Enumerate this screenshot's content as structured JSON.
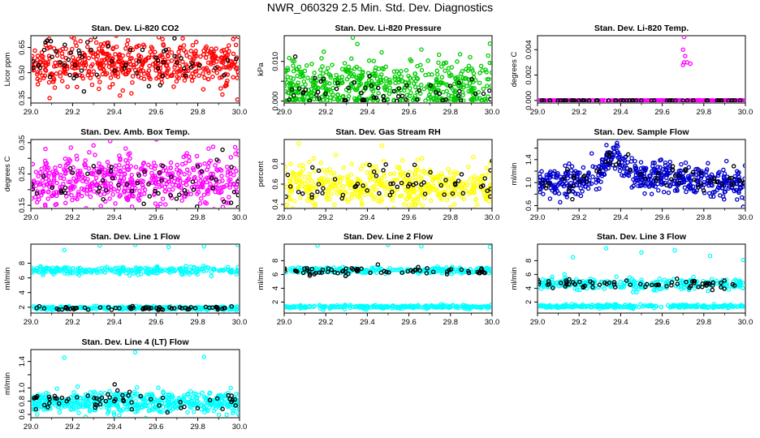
{
  "page": {
    "title": "NWR_060329  2.5 Min. Std. Dev. Diagnostics"
  },
  "chart_data": [
    {
      "type": "scatter",
      "title": "Stan. Dev. Li-820 CO2",
      "ylabel": "Licor ppm",
      "xlim": [
        29.0,
        30.0
      ],
      "ylim": [
        0.32,
        0.72
      ],
      "xticks": [
        "29.0",
        "29.2",
        "29.4",
        "29.6",
        "29.8",
        "30.0"
      ],
      "yticks": [
        0.35,
        0.5,
        0.65
      ],
      "ytick_labels": [
        "0.35",
        "0.50",
        "0.65"
      ],
      "series": [
        {
          "color": "#ff0000",
          "count": 520,
          "pattern": "band",
          "base": 0.555,
          "spread": 0.07
        },
        {
          "color": "#000000",
          "count": 60,
          "pattern": "band",
          "base": 0.57,
          "spread": 0.07
        }
      ],
      "notable_points": [
        {
          "x": 29.99,
          "y": 0.34,
          "color": "#ff0000"
        },
        {
          "x": 29.97,
          "y": 0.7,
          "color": "#ff0000"
        },
        {
          "x": 29.07,
          "y": 0.68,
          "color": "#000000"
        }
      ]
    },
    {
      "type": "scatter",
      "title": "Stan. Dev. Li-820 Pressure",
      "ylabel": "kPa",
      "xlim": [
        29.0,
        30.0
      ],
      "ylim": [
        -0.0005,
        0.0165
      ],
      "xticks": [
        "29.0",
        "29.2",
        "29.4",
        "29.6",
        "29.8",
        "30.0"
      ],
      "yticks": [
        0.0,
        0.005,
        0.01
      ],
      "ytick_labels": [
        "0.000",
        "",
        "0.010"
      ],
      "series": [
        {
          "color": "#00cc00",
          "count": 520,
          "pattern": "band",
          "base": 0.0035,
          "spread": 0.0035,
          "floor": 0.0
        },
        {
          "color": "#000000",
          "count": 60,
          "pattern": "band",
          "base": 0.0025,
          "spread": 0.003,
          "floor": 0.0
        }
      ],
      "notable_points": [
        {
          "x": 29.33,
          "y": 0.016,
          "color": "#00cc00"
        },
        {
          "x": 29.66,
          "y": 0.013,
          "color": "#00cc00"
        },
        {
          "x": 29.99,
          "y": 0.0145,
          "color": "#00cc00"
        }
      ]
    },
    {
      "type": "scatter",
      "title": "Stan. Dev. Li-820 Temp.",
      "ylabel": "degrees C",
      "xlim": [
        29.0,
        30.0
      ],
      "ylim": [
        -0.0002,
        0.0051
      ],
      "xticks": [
        "29.0",
        "29.2",
        "29.4",
        "29.6",
        "29.8",
        "30.0"
      ],
      "yticks": [
        0.0,
        0.002,
        0.004
      ],
      "ytick_labels": [
        "0.000",
        "0.002",
        "0.004"
      ],
      "series": [
        {
          "color": "#ff00ff",
          "count": 300,
          "pattern": "flat",
          "base": 0.0,
          "spread": 0.0
        },
        {
          "color": "#000000",
          "count": 60,
          "pattern": "flat",
          "base": 0.0,
          "spread": 0.0
        }
      ],
      "notable_points": [
        {
          "x": 29.705,
          "y": 0.005,
          "color": "#ff00ff"
        },
        {
          "x": 29.7,
          "y": 0.004,
          "color": "#ff00ff"
        },
        {
          "x": 29.71,
          "y": 0.0035,
          "color": "#ff00ff"
        },
        {
          "x": 29.705,
          "y": 0.003,
          "color": "#ff00ff"
        },
        {
          "x": 29.72,
          "y": 0.003,
          "color": "#ff00ff"
        },
        {
          "x": 29.735,
          "y": 0.0029,
          "color": "#ff00ff"
        },
        {
          "x": 29.7,
          "y": 0.0028,
          "color": "#ff00ff"
        }
      ]
    },
    {
      "type": "scatter",
      "title": "Stan. Dev. Amb. Box Temp.",
      "ylabel": "degrees C",
      "xlim": [
        29.0,
        30.0
      ],
      "ylim": [
        0.14,
        0.36
      ],
      "xticks": [
        "29.0",
        "29.2",
        "29.4",
        "29.6",
        "29.8",
        "30.0"
      ],
      "yticks": [
        0.15,
        0.2,
        0.25,
        0.3,
        0.35
      ],
      "ytick_labels": [
        "0.15",
        "",
        "0.25",
        "",
        "0.35"
      ],
      "series": [
        {
          "color": "#ff00ff",
          "count": 520,
          "pattern": "band",
          "base": 0.228,
          "spread": 0.045
        },
        {
          "color": "#000000",
          "count": 60,
          "pattern": "band",
          "base": 0.215,
          "spread": 0.035
        }
      ],
      "notable_points": [
        {
          "x": 29.07,
          "y": 0.33,
          "color": "#ff00ff"
        },
        {
          "x": 29.38,
          "y": 0.355,
          "color": "#ff00ff"
        },
        {
          "x": 29.03,
          "y": 0.16,
          "color": "#ff00ff"
        }
      ]
    },
    {
      "type": "scatter",
      "title": "Stan. Dev. Gas Stream RH",
      "ylabel": "percent",
      "xlim": [
        29.0,
        30.0
      ],
      "ylim": [
        0.36,
        1.04
      ],
      "xticks": [
        "29.0",
        "29.2",
        "29.4",
        "29.6",
        "29.8",
        "30.0"
      ],
      "yticks": [
        0.4,
        0.6,
        0.8
      ],
      "ytick_labels": [
        "0.4",
        "0.6",
        "0.8"
      ],
      "series": [
        {
          "color": "#ffff00",
          "count": 480,
          "pattern": "band",
          "base": 0.575,
          "spread": 0.11
        },
        {
          "color": "#000000",
          "count": 60,
          "pattern": "band",
          "base": 0.59,
          "spread": 0.1
        }
      ],
      "notable_points": [
        {
          "x": 29.07,
          "y": 1.0,
          "color": "#ffff00"
        },
        {
          "x": 29.47,
          "y": 0.98,
          "color": "#ffff00"
        }
      ]
    },
    {
      "type": "scatter",
      "title": "Stan. Dev. Sample Flow",
      "ylabel": "ml/min",
      "xlim": [
        29.0,
        30.0
      ],
      "ylim": [
        0.55,
        1.75
      ],
      "xticks": [
        "29.0",
        "29.2",
        "29.4",
        "29.6",
        "29.8",
        "30.0"
      ],
      "yticks": [
        0.6,
        0.8,
        1.0,
        1.2,
        1.4,
        1.6
      ],
      "ytick_labels": [
        "0.6",
        "",
        "1.0",
        "",
        "1.4",
        ""
      ],
      "series": [
        {
          "color": "#0000cc",
          "count": 520,
          "pattern": "hump",
          "base": 1.0,
          "spread": 0.13
        },
        {
          "color": "#000000",
          "count": 60,
          "pattern": "hump",
          "base": 1.02,
          "spread": 0.1
        }
      ],
      "notable_points": [
        {
          "x": 29.38,
          "y": 1.65,
          "color": "#0000cc"
        },
        {
          "x": 29.99,
          "y": 0.58,
          "color": "#0000cc"
        },
        {
          "x": 29.06,
          "y": 0.72,
          "color": "#0000cc"
        }
      ]
    },
    {
      "type": "scatter",
      "title": "Stan. Dev. Line 1 Flow",
      "ylabel": "ml/min",
      "xlim": [
        29.0,
        30.0
      ],
      "ylim": [
        1.2,
        10.6
      ],
      "xticks": [
        "29.0",
        "29.2",
        "29.4",
        "29.6",
        "29.8",
        "30.0"
      ],
      "yticks": [
        2,
        4,
        6,
        8
      ],
      "ytick_labels": [
        "2",
        "4",
        "6",
        "8"
      ],
      "series": [
        {
          "color": "#00ffff",
          "count": 520,
          "pattern": "twoband",
          "base": 7.0,
          "spread": 0.25,
          "base2": 1.9,
          "spread2": 0.12
        },
        {
          "color": "#000000",
          "count": 60,
          "pattern": "band",
          "base": 1.9,
          "spread": 0.15
        }
      ],
      "notable_points": [
        {
          "x": 29.16,
          "y": 9.8,
          "color": "#00ffff"
        },
        {
          "x": 29.33,
          "y": 10.4,
          "color": "#00ffff"
        },
        {
          "x": 29.5,
          "y": 10.5,
          "color": "#00ffff"
        },
        {
          "x": 29.66,
          "y": 10.2,
          "color": "#00ffff"
        },
        {
          "x": 29.83,
          "y": 10.3,
          "color": "#00ffff"
        },
        {
          "x": 29.99,
          "y": 10.5,
          "color": "#00ffff"
        }
      ]
    },
    {
      "type": "scatter",
      "title": "Stan. Dev. Line 2 Flow",
      "ylabel": "ml/min",
      "xlim": [
        29.0,
        30.0
      ],
      "ylim": [
        0.4,
        10.4
      ],
      "xticks": [
        "29.0",
        "29.2",
        "29.4",
        "29.6",
        "29.8",
        "30.0"
      ],
      "yticks": [
        2,
        4,
        6,
        8
      ],
      "ytick_labels": [
        "2",
        "4",
        "6",
        "8"
      ],
      "series": [
        {
          "color": "#00ffff",
          "count": 520,
          "pattern": "twoband",
          "base": 6.6,
          "spread": 0.2,
          "base2": 1.3,
          "spread2": 0.12
        },
        {
          "color": "#000000",
          "count": 70,
          "pattern": "band",
          "base": 6.5,
          "spread": 0.25
        }
      ],
      "notable_points": [
        {
          "x": 29.16,
          "y": 10.2,
          "color": "#00ffff"
        },
        {
          "x": 29.5,
          "y": 10.3,
          "color": "#00ffff"
        },
        {
          "x": 29.66,
          "y": 10.1,
          "color": "#00ffff"
        },
        {
          "x": 29.99,
          "y": 10.0,
          "color": "#00ffff"
        }
      ]
    },
    {
      "type": "scatter",
      "title": "Stan. Dev. Line 3 Flow",
      "ylabel": "ml/min",
      "xlim": [
        29.0,
        30.0
      ],
      "ylim": [
        0.4,
        10.4
      ],
      "xticks": [
        "29.0",
        "29.2",
        "29.4",
        "29.6",
        "29.8",
        "30.0"
      ],
      "yticks": [
        2,
        4,
        6,
        8
      ],
      "ytick_labels": [
        "2",
        "4",
        "6",
        "8"
      ],
      "series": [
        {
          "color": "#00ffff",
          "count": 520,
          "pattern": "twoband",
          "base": 4.6,
          "spread": 0.45,
          "base2": 1.4,
          "spread2": 0.12
        },
        {
          "color": "#000000",
          "count": 70,
          "pattern": "band",
          "base": 4.6,
          "spread": 0.35
        }
      ],
      "notable_points": [
        {
          "x": 29.17,
          "y": 8.5,
          "color": "#00ffff"
        },
        {
          "x": 29.33,
          "y": 9.8,
          "color": "#00ffff"
        },
        {
          "x": 29.5,
          "y": 9.2,
          "color": "#00ffff"
        },
        {
          "x": 29.66,
          "y": 9.5,
          "color": "#00ffff"
        },
        {
          "x": 29.83,
          "y": 8.7,
          "color": "#00ffff"
        },
        {
          "x": 29.99,
          "y": 8.1,
          "color": "#00ffff"
        }
      ]
    },
    {
      "type": "scatter",
      "title": "Stan. Dev. Line 4 (LT) Flow",
      "ylabel": "ml/min",
      "xlim": [
        29.0,
        30.0
      ],
      "ylim": [
        0.55,
        1.58
      ],
      "xticks": [
        "29.0",
        "29.2",
        "29.4",
        "29.6",
        "29.8",
        "30.0"
      ],
      "yticks": [
        0.6,
        0.8,
        1.0,
        1.2,
        1.4
      ],
      "ytick_labels": [
        "0.6",
        "0.8",
        "1.0",
        "",
        "1.4"
      ],
      "series": [
        {
          "color": "#00ffff",
          "count": 520,
          "pattern": "band",
          "base": 0.78,
          "spread": 0.08
        },
        {
          "color": "#000000",
          "count": 60,
          "pattern": "band",
          "base": 0.8,
          "spread": 0.07
        }
      ],
      "notable_points": [
        {
          "x": 29.16,
          "y": 1.46,
          "color": "#00ffff"
        },
        {
          "x": 29.5,
          "y": 1.54,
          "color": "#00ffff"
        },
        {
          "x": 29.83,
          "y": 1.47,
          "color": "#00ffff"
        },
        {
          "x": 29.03,
          "y": 0.6,
          "color": "#00ffff"
        }
      ]
    }
  ]
}
